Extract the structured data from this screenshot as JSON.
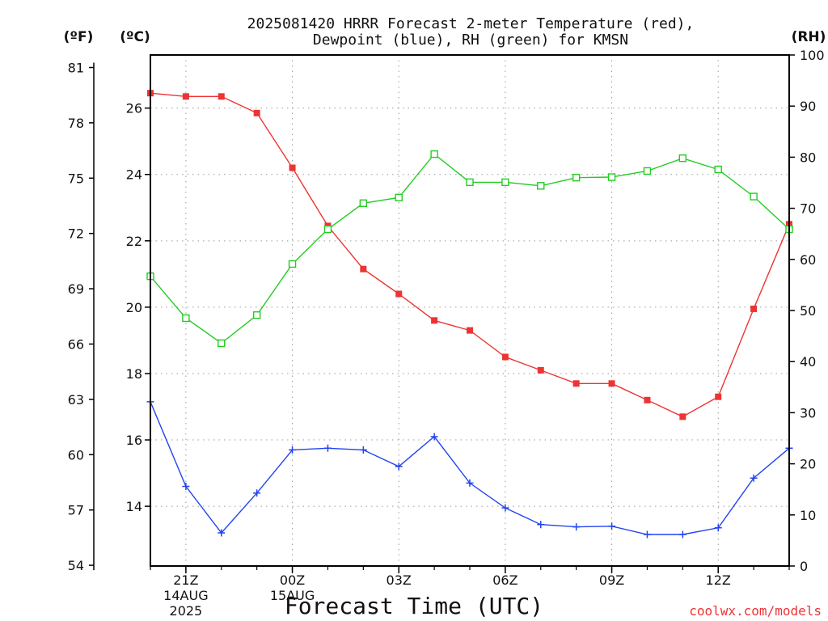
{
  "chart_data": {
    "type": "line",
    "title_line1": "2025081420 HRRR Forecast 2-meter Temperature (red),",
    "title_line2": "Dewpoint (blue), RH (green) for KMSN",
    "xlabel": "Forecast Time (UTC)",
    "left_unit_f": "(ºF)",
    "left_unit_c": "(ºC)",
    "right_unit": "(RH)",
    "watermark": "coolwx.com/models",
    "celsius_range": [
      12.2,
      27.6
    ],
    "rh_range": [
      0,
      100
    ],
    "x_range": [
      0,
      18
    ],
    "celsius_ticks": [
      14,
      16,
      18,
      20,
      22,
      24,
      26
    ],
    "fahrenheit_ticks": [
      54,
      57,
      60,
      63,
      66,
      69,
      72,
      75,
      78,
      81
    ],
    "rh_ticks": [
      0,
      10,
      20,
      30,
      40,
      50,
      60,
      70,
      80,
      90,
      100
    ],
    "x_ticks": [
      {
        "x": 1,
        "line1": "21Z",
        "line2": "14AUG",
        "line3": "2025"
      },
      {
        "x": 4,
        "line1": "00Z",
        "line2": "15AUG",
        "line3": ""
      },
      {
        "x": 7,
        "line1": "03Z",
        "line2": "",
        "line3": ""
      },
      {
        "x": 10,
        "line1": "06Z",
        "line2": "",
        "line3": ""
      },
      {
        "x": 13,
        "line1": "09Z",
        "line2": "",
        "line3": ""
      },
      {
        "x": 16,
        "line1": "12Z",
        "line2": "",
        "line3": ""
      }
    ],
    "grid": true,
    "series": [
      {
        "name": "Temperature",
        "axis": "celsius",
        "color": "#ee3333",
        "marker": "filled-square",
        "x": [
          0,
          1,
          2,
          3,
          4,
          5,
          6,
          7,
          8,
          9,
          10,
          11,
          12,
          13,
          14,
          15,
          16,
          17,
          18
        ],
        "values": [
          26.45,
          26.35,
          26.35,
          25.85,
          24.2,
          22.45,
          21.15,
          20.4,
          19.6,
          19.3,
          18.5,
          18.1,
          17.7,
          17.7,
          17.2,
          16.7,
          17.3,
          19.95,
          22.5
        ]
      },
      {
        "name": "Dewpoint",
        "axis": "celsius",
        "color": "#2244ee",
        "marker": "plus",
        "x": [
          0,
          1,
          2,
          3,
          4,
          5,
          6,
          7,
          8,
          9,
          10,
          11,
          12,
          13,
          14,
          15,
          16,
          17,
          18
        ],
        "values": [
          17.15,
          14.6,
          13.2,
          14.4,
          15.7,
          15.75,
          15.7,
          15.2,
          16.1,
          14.7,
          13.95,
          13.45,
          13.38,
          13.4,
          13.15,
          13.15,
          13.35,
          14.85,
          15.75
        ]
      },
      {
        "name": "RH",
        "axis": "rh",
        "color": "#22cc22",
        "marker": "open-square",
        "x": [
          0,
          1,
          2,
          3,
          4,
          5,
          6,
          7,
          8,
          9,
          10,
          11,
          12,
          13,
          14,
          15,
          16,
          17,
          18
        ],
        "values": [
          56.7,
          48.5,
          43.6,
          49.1,
          59.1,
          65.9,
          71.0,
          72.1,
          80.6,
          75.1,
          75.1,
          74.4,
          76.0,
          76.1,
          77.3,
          79.8,
          77.6,
          72.3,
          65.9
        ]
      }
    ]
  }
}
